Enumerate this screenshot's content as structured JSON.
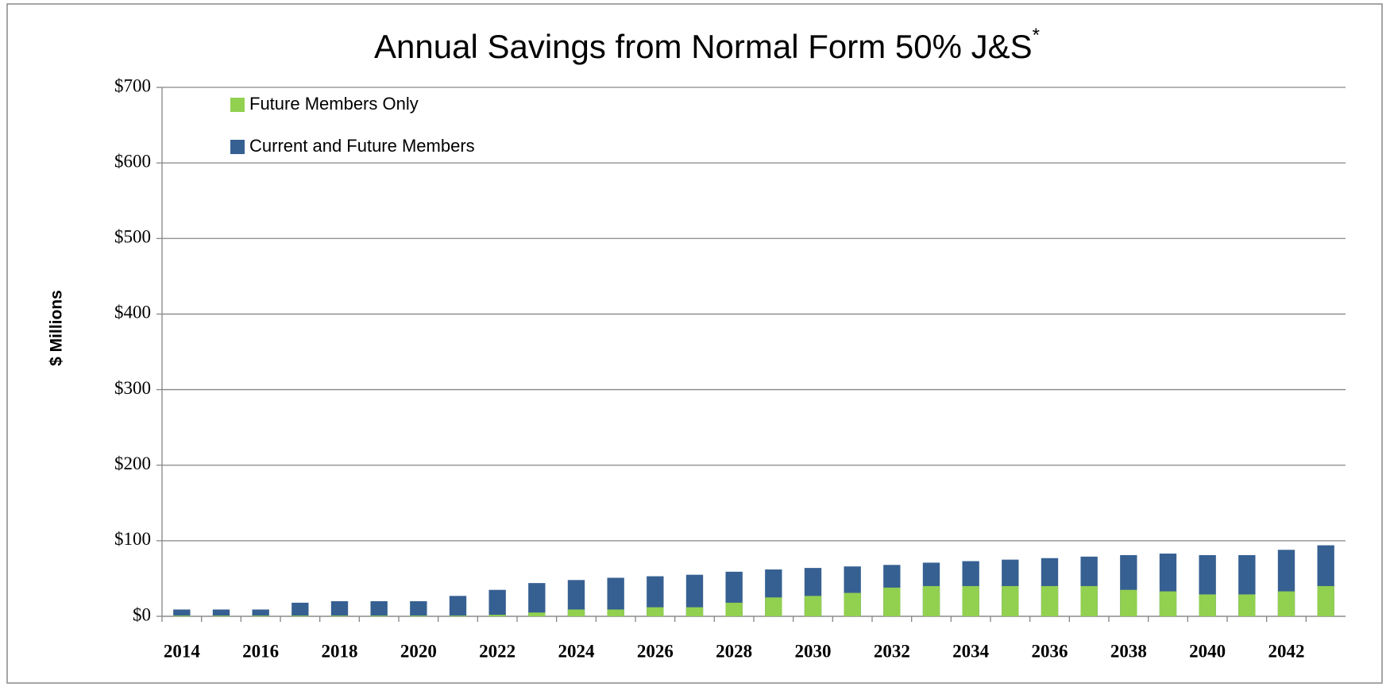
{
  "chart_data": {
    "type": "bar",
    "overlap": true,
    "title": "Annual Savings from Normal Form 50% J&S",
    "title_superscript": "*",
    "y_label": "$ Millions",
    "categories": [
      "2014",
      null,
      "2016",
      null,
      "2018",
      null,
      "2020",
      null,
      "2022",
      null,
      "2024",
      null,
      "2026",
      null,
      "2028",
      null,
      "2030",
      null,
      "2032",
      null,
      "2034",
      null,
      "2036",
      null,
      "2038",
      null,
      "2040",
      null,
      "2042",
      null
    ],
    "series": [
      {
        "name": "Future Members Only",
        "color": "#92d050",
        "values": [
          1,
          1,
          1,
          1,
          1,
          1,
          1,
          1,
          2,
          5,
          9,
          9,
          12,
          12,
          18,
          25,
          27,
          31,
          38,
          40,
          40,
          40,
          40,
          40,
          35,
          33,
          29,
          29,
          33,
          40
        ]
      },
      {
        "name": "Current and Future Members",
        "color": "#366092",
        "values": [
          9,
          9,
          9,
          18,
          20,
          20,
          20,
          27,
          35,
          44,
          48,
          51,
          53,
          55,
          59,
          62,
          64,
          66,
          68,
          71,
          73,
          75,
          77,
          79,
          81,
          83,
          81,
          81,
          88,
          94
        ]
      }
    ],
    "ylim": [
      0,
      700
    ],
    "yticks": [
      {
        "value": 0,
        "label": "$0"
      },
      {
        "value": 100,
        "label": "$100"
      },
      {
        "value": 200,
        "label": "$200"
      },
      {
        "value": 300,
        "label": "$300"
      },
      {
        "value": 400,
        "label": "$400"
      },
      {
        "value": 500,
        "label": "$500"
      },
      {
        "value": 600,
        "label": "$600"
      },
      {
        "value": 700,
        "label": "$700"
      }
    ],
    "grid": true,
    "legend": "top-left"
  }
}
